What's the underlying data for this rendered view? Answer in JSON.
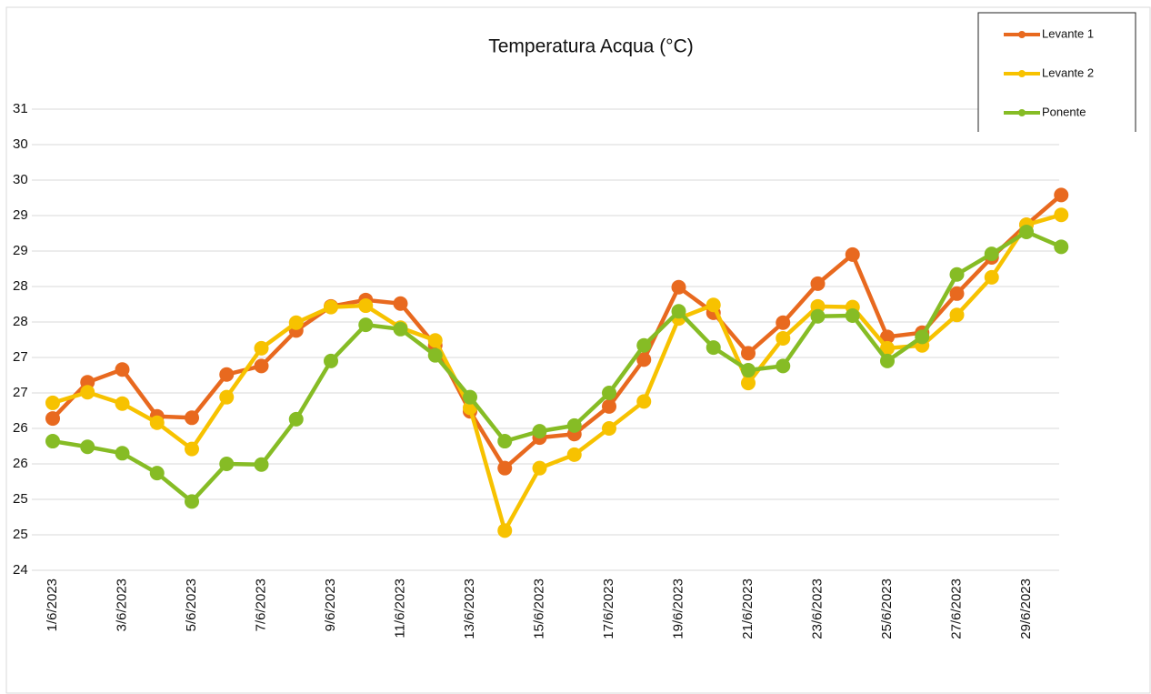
{
  "chart_data": {
    "type": "line",
    "title": "Temperatura Acqua (°C)",
    "categories": [
      "1/6/2023",
      null,
      "3/6/2023",
      null,
      "5/6/2023",
      null,
      "7/6/2023",
      null,
      "9/6/2023",
      null,
      "11/6/2023",
      null,
      "13/6/2023",
      null,
      "15/6/2023",
      null,
      "17/6/2023",
      null,
      "19/6/2023",
      null,
      "21/6/2023",
      null,
      "23/6/2023",
      null,
      "25/6/2023",
      null,
      "27/6/2023",
      null,
      "29/6/2023",
      null
    ],
    "series": [
      {
        "name": "Levante 1",
        "color": "#e8691f",
        "values": [
          26.14,
          26.65,
          26.83,
          26.17,
          26.15,
          26.76,
          26.88,
          27.38,
          27.72,
          27.81,
          27.76,
          27.17,
          26.24,
          25.44,
          25.87,
          25.92,
          26.31,
          26.97,
          27.99,
          27.63,
          27.06,
          27.49,
          28.04,
          28.45,
          27.29,
          27.35,
          27.9,
          28.41,
          28.87,
          29.29
        ]
      },
      {
        "name": "Levante 2",
        "color": "#f7c200",
        "values": [
          26.36,
          26.51,
          26.35,
          26.08,
          25.71,
          26.44,
          27.13,
          27.49,
          27.71,
          27.73,
          27.42,
          27.24,
          26.29,
          24.56,
          25.44,
          25.63,
          26.0,
          26.38,
          27.55,
          27.74,
          26.64,
          27.27,
          27.72,
          27.71,
          27.13,
          27.17,
          27.6,
          28.13,
          28.87,
          29.01
        ]
      },
      {
        "name": "Ponente",
        "color": "#86bc25",
        "values": [
          25.82,
          25.74,
          25.65,
          25.37,
          24.97,
          25.5,
          25.49,
          26.13,
          26.95,
          27.46,
          27.4,
          27.03,
          26.44,
          25.82,
          25.96,
          26.04,
          26.5,
          27.17,
          27.65,
          27.14,
          26.82,
          26.88,
          27.58,
          27.59,
          26.95,
          27.29,
          28.17,
          28.46,
          28.77,
          28.56
        ]
      }
    ],
    "ylim": [
      24,
      30.5
    ],
    "yticks": [
      24,
      {
        "value": 24.5,
        "label": "25"
      },
      25,
      {
        "value": 25.5,
        "label": "26"
      },
      26,
      {
        "value": 26.5,
        "label": "27"
      },
      27,
      {
        "value": 27.5,
        "label": "28"
      },
      28,
      {
        "value": 28.5,
        "label": "29"
      },
      29,
      {
        "value": 29.5,
        "label": "30"
      },
      30,
      {
        "value": 30.5,
        "label": "31"
      }
    ],
    "grid": true,
    "legend": "top-right"
  }
}
